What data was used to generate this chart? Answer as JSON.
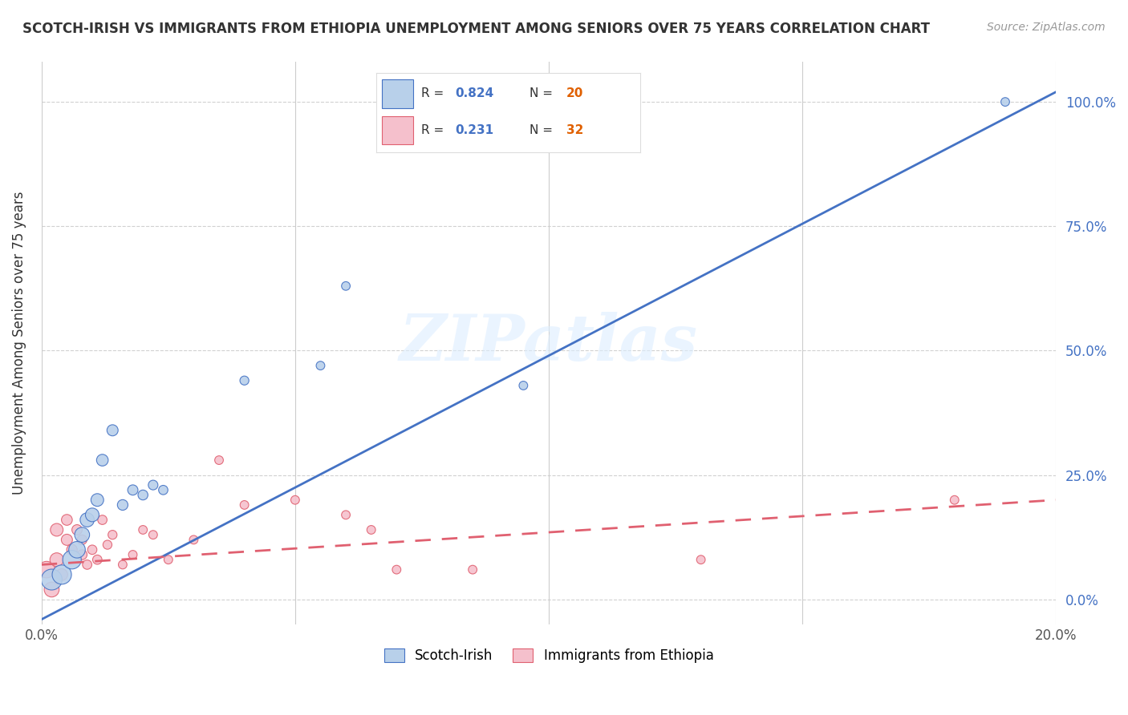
{
  "title": "SCOTCH-IRISH VS IMMIGRANTS FROM ETHIOPIA UNEMPLOYMENT AMONG SENIORS OVER 75 YEARS CORRELATION CHART",
  "source": "Source: ZipAtlas.com",
  "ylabel": "Unemployment Among Seniors over 75 years",
  "watermark": "ZIPatlas",
  "blue_R": 0.824,
  "blue_N": 20,
  "pink_R": 0.231,
  "pink_N": 32,
  "blue_color": "#b8d0ea",
  "pink_color": "#f5c0cc",
  "blue_line_color": "#4472C4",
  "pink_line_color": "#E06070",
  "ytick_labels": [
    "0.0%",
    "25.0%",
    "50.0%",
    "75.0%",
    "100.0%"
  ],
  "ytick_values": [
    0.0,
    0.25,
    0.5,
    0.75,
    1.0
  ],
  "xlim": [
    0.0,
    0.2
  ],
  "ylim": [
    -0.05,
    1.08
  ],
  "blue_scatter_x": [
    0.002,
    0.004,
    0.006,
    0.007,
    0.008,
    0.009,
    0.01,
    0.011,
    0.012,
    0.014,
    0.016,
    0.018,
    0.02,
    0.022,
    0.024,
    0.04,
    0.055,
    0.06,
    0.095,
    0.19
  ],
  "blue_scatter_y": [
    0.04,
    0.05,
    0.08,
    0.1,
    0.13,
    0.16,
    0.17,
    0.2,
    0.28,
    0.34,
    0.19,
    0.22,
    0.21,
    0.23,
    0.22,
    0.44,
    0.47,
    0.63,
    0.43,
    1.0
  ],
  "blue_scatter_size": [
    350,
    300,
    280,
    220,
    180,
    160,
    150,
    130,
    110,
    100,
    90,
    85,
    80,
    75,
    70,
    65,
    60,
    60,
    60,
    60
  ],
  "pink_scatter_x": [
    0.001,
    0.002,
    0.003,
    0.003,
    0.004,
    0.005,
    0.005,
    0.006,
    0.007,
    0.008,
    0.008,
    0.009,
    0.01,
    0.011,
    0.012,
    0.013,
    0.014,
    0.016,
    0.018,
    0.02,
    0.022,
    0.025,
    0.03,
    0.035,
    0.04,
    0.05,
    0.06,
    0.065,
    0.07,
    0.085,
    0.13,
    0.18
  ],
  "pink_scatter_y": [
    0.06,
    0.02,
    0.08,
    0.14,
    0.05,
    0.12,
    0.16,
    0.1,
    0.14,
    0.09,
    0.12,
    0.07,
    0.1,
    0.08,
    0.16,
    0.11,
    0.13,
    0.07,
    0.09,
    0.14,
    0.13,
    0.08,
    0.12,
    0.28,
    0.19,
    0.2,
    0.17,
    0.14,
    0.06,
    0.06,
    0.08,
    0.2
  ],
  "pink_scatter_size": [
    220,
    180,
    150,
    130,
    110,
    100,
    95,
    90,
    85,
    80,
    75,
    70,
    70,
    70,
    70,
    65,
    65,
    60,
    60,
    60,
    60,
    60,
    60,
    60,
    60,
    60,
    60,
    60,
    60,
    60,
    60,
    60
  ],
  "blue_line_x": [
    0.0,
    0.2
  ],
  "blue_line_y": [
    -0.04,
    1.02
  ],
  "pink_line_x": [
    0.0,
    0.2
  ],
  "pink_line_y": [
    0.07,
    0.2
  ],
  "grid_color": "#cccccc",
  "background_color": "#ffffff",
  "N_color": "#E06000",
  "legend_label_color": "#4472C4"
}
